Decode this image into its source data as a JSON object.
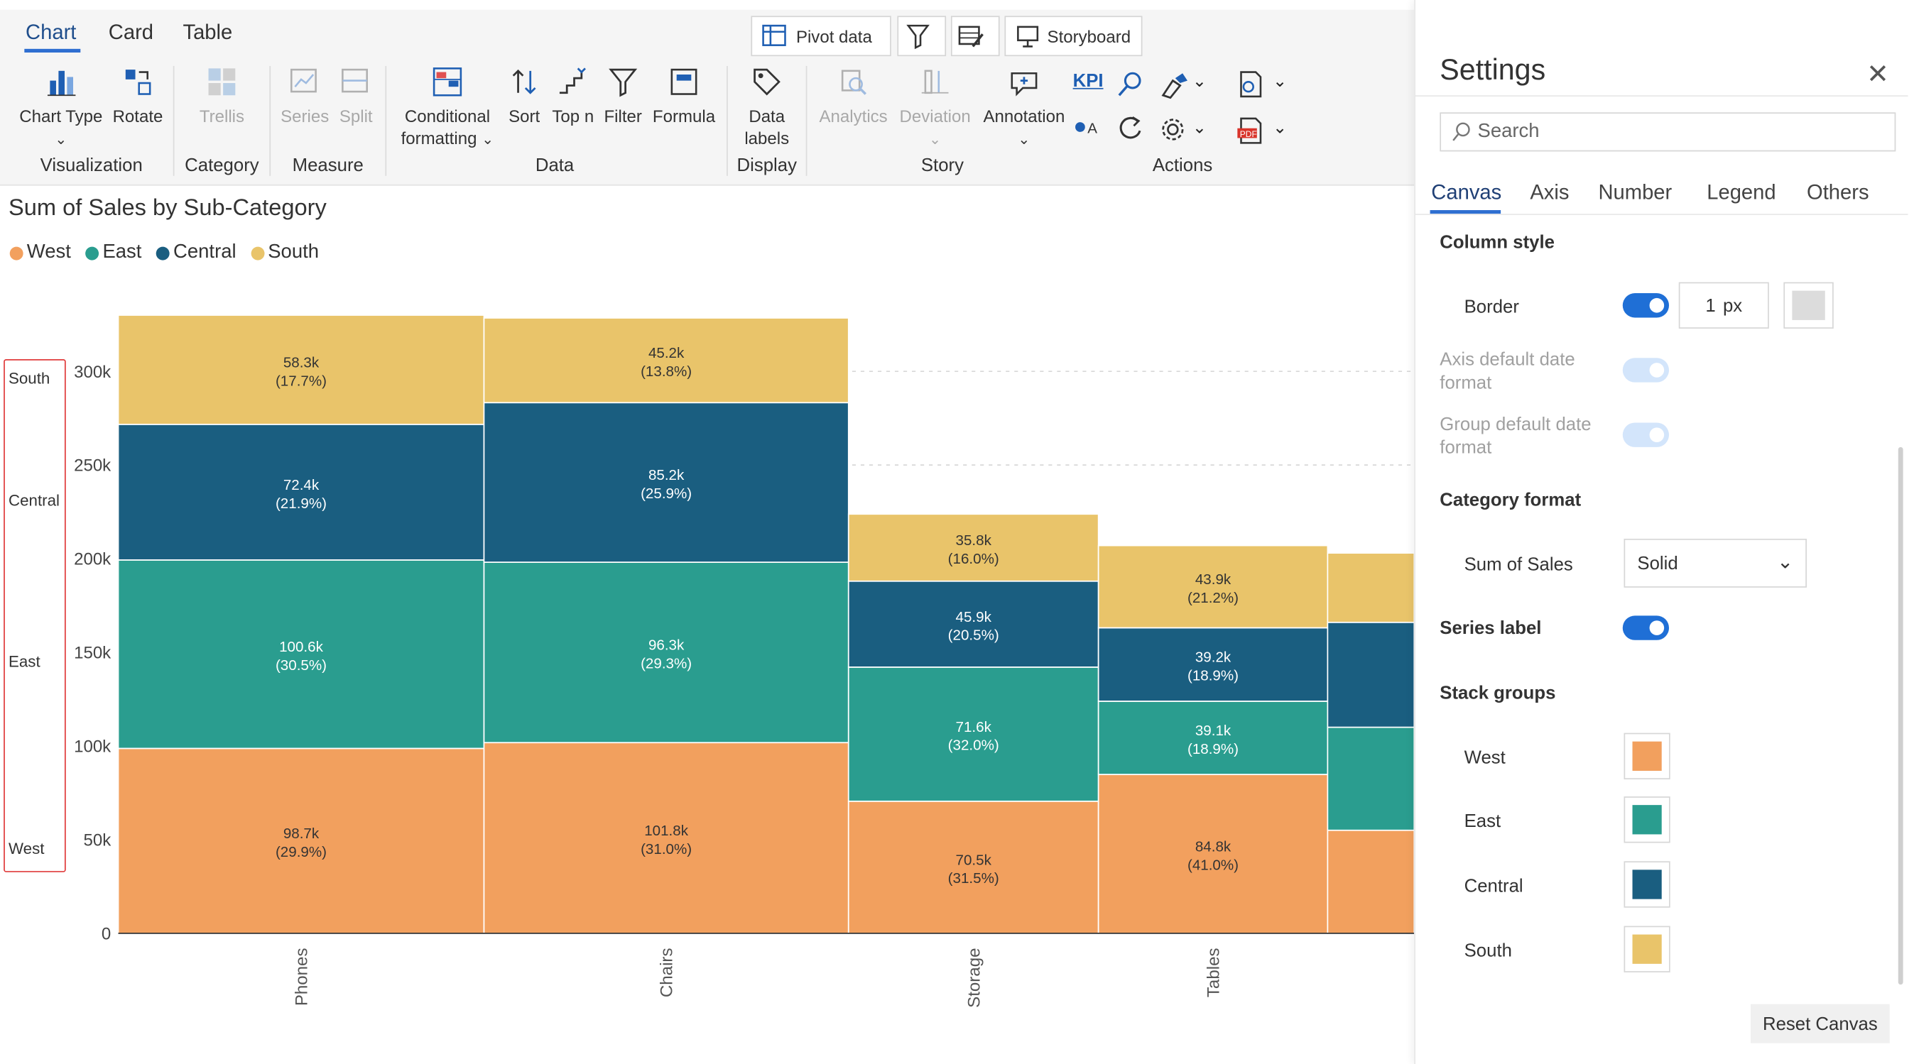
{
  "tabs": [
    "Chart",
    "Card",
    "Table"
  ],
  "top_buttons": {
    "pivot": "Pivot data",
    "storyboard": "Storyboard"
  },
  "ribbon": {
    "chart_type": "Chart Type",
    "rotate": "Rotate",
    "trellis": "Trellis",
    "series": "Series",
    "split": "Split",
    "cond_1": "Conditional",
    "cond_2": "formatting",
    "sort": "Sort",
    "topn": "Top n",
    "filter": "Filter",
    "formula": "Formula",
    "data_labels_1": "Data",
    "data_labels_2": "labels",
    "analytics": "Analytics",
    "deviation": "Deviation",
    "annotation": "Annotation",
    "kpi": "KPI",
    "groups": {
      "visualization": "Visualization",
      "category": "Category",
      "measure": "Measure",
      "data": "Data",
      "display": "Display",
      "story": "Story",
      "actions": "Actions"
    }
  },
  "chart_data": {
    "type": "bar",
    "title": "Sum of Sales by Sub-Category",
    "stacked": true,
    "categories": [
      "Phones",
      "Chairs",
      "Storage",
      "Tables",
      ""
    ],
    "series": [
      {
        "name": "West",
        "color": "#F2A05E",
        "values": [
          98.7,
          101.8,
          70.5,
          84.8,
          55
        ],
        "labels": [
          "98.7k",
          "101.8k",
          "70.5k",
          "84.8k",
          ""
        ],
        "pcts": [
          "(29.9%)",
          "(31.0%)",
          "(31.5%)",
          "(41.0%)",
          ""
        ]
      },
      {
        "name": "East",
        "color": "#2A9D8F",
        "values": [
          100.6,
          96.3,
          71.6,
          39.1,
          55
        ],
        "labels": [
          "100.6k",
          "96.3k",
          "71.6k",
          "39.1k",
          ""
        ],
        "pcts": [
          "(30.5%)",
          "(29.3%)",
          "(32.0%)",
          "(18.9%)",
          ""
        ]
      },
      {
        "name": "Central",
        "color": "#1A5E80",
        "values": [
          72.4,
          85.2,
          45.9,
          39.2,
          56
        ],
        "labels": [
          "72.4k",
          "85.2k",
          "45.9k",
          "39.2k",
          ""
        ],
        "pcts": [
          "(21.9%)",
          "(25.9%)",
          "(20.5%)",
          "(18.9%)",
          ""
        ]
      },
      {
        "name": "South",
        "color": "#E9C46A",
        "values": [
          58.3,
          45.2,
          35.8,
          43.9,
          37
        ],
        "labels": [
          "58.3k",
          "45.2k",
          "35.8k",
          "43.9k",
          ""
        ],
        "pcts": [
          "(17.7%)",
          "(13.8%)",
          "(16.0%)",
          "(21.2%)",
          ""
        ]
      }
    ],
    "totals": [
      330.0,
      328.5,
      223.8,
      207.0,
      203
    ],
    "y_ticks": [
      "0",
      "50k",
      "100k",
      "150k",
      "200k",
      "250k",
      "300k"
    ],
    "ylim": [
      0,
      330
    ],
    "legend_position": "top-left"
  },
  "stack_labels": [
    "South",
    "Central",
    "East",
    "West"
  ],
  "settings": {
    "title": "Settings",
    "search_placeholder": "Search",
    "tabs": [
      "Canvas",
      "Axis",
      "Number",
      "Legend",
      "Others"
    ],
    "column_style": "Column style",
    "border": "Border",
    "border_value": "1",
    "border_unit": "px",
    "axis_date_1": "Axis default date",
    "axis_date_2": "format",
    "group_date_1": "Group default date",
    "group_date_2": "format",
    "category_format": "Category format",
    "sum_of_sales": "Sum of Sales",
    "solid": "Solid",
    "series_label": "Series label",
    "stack_groups": "Stack groups",
    "groups": [
      "West",
      "East",
      "Central",
      "South"
    ],
    "group_colors": [
      "#F2A05E",
      "#2A9D8F",
      "#1A5E80",
      "#E9C46A"
    ],
    "reset": "Reset Canvas"
  }
}
